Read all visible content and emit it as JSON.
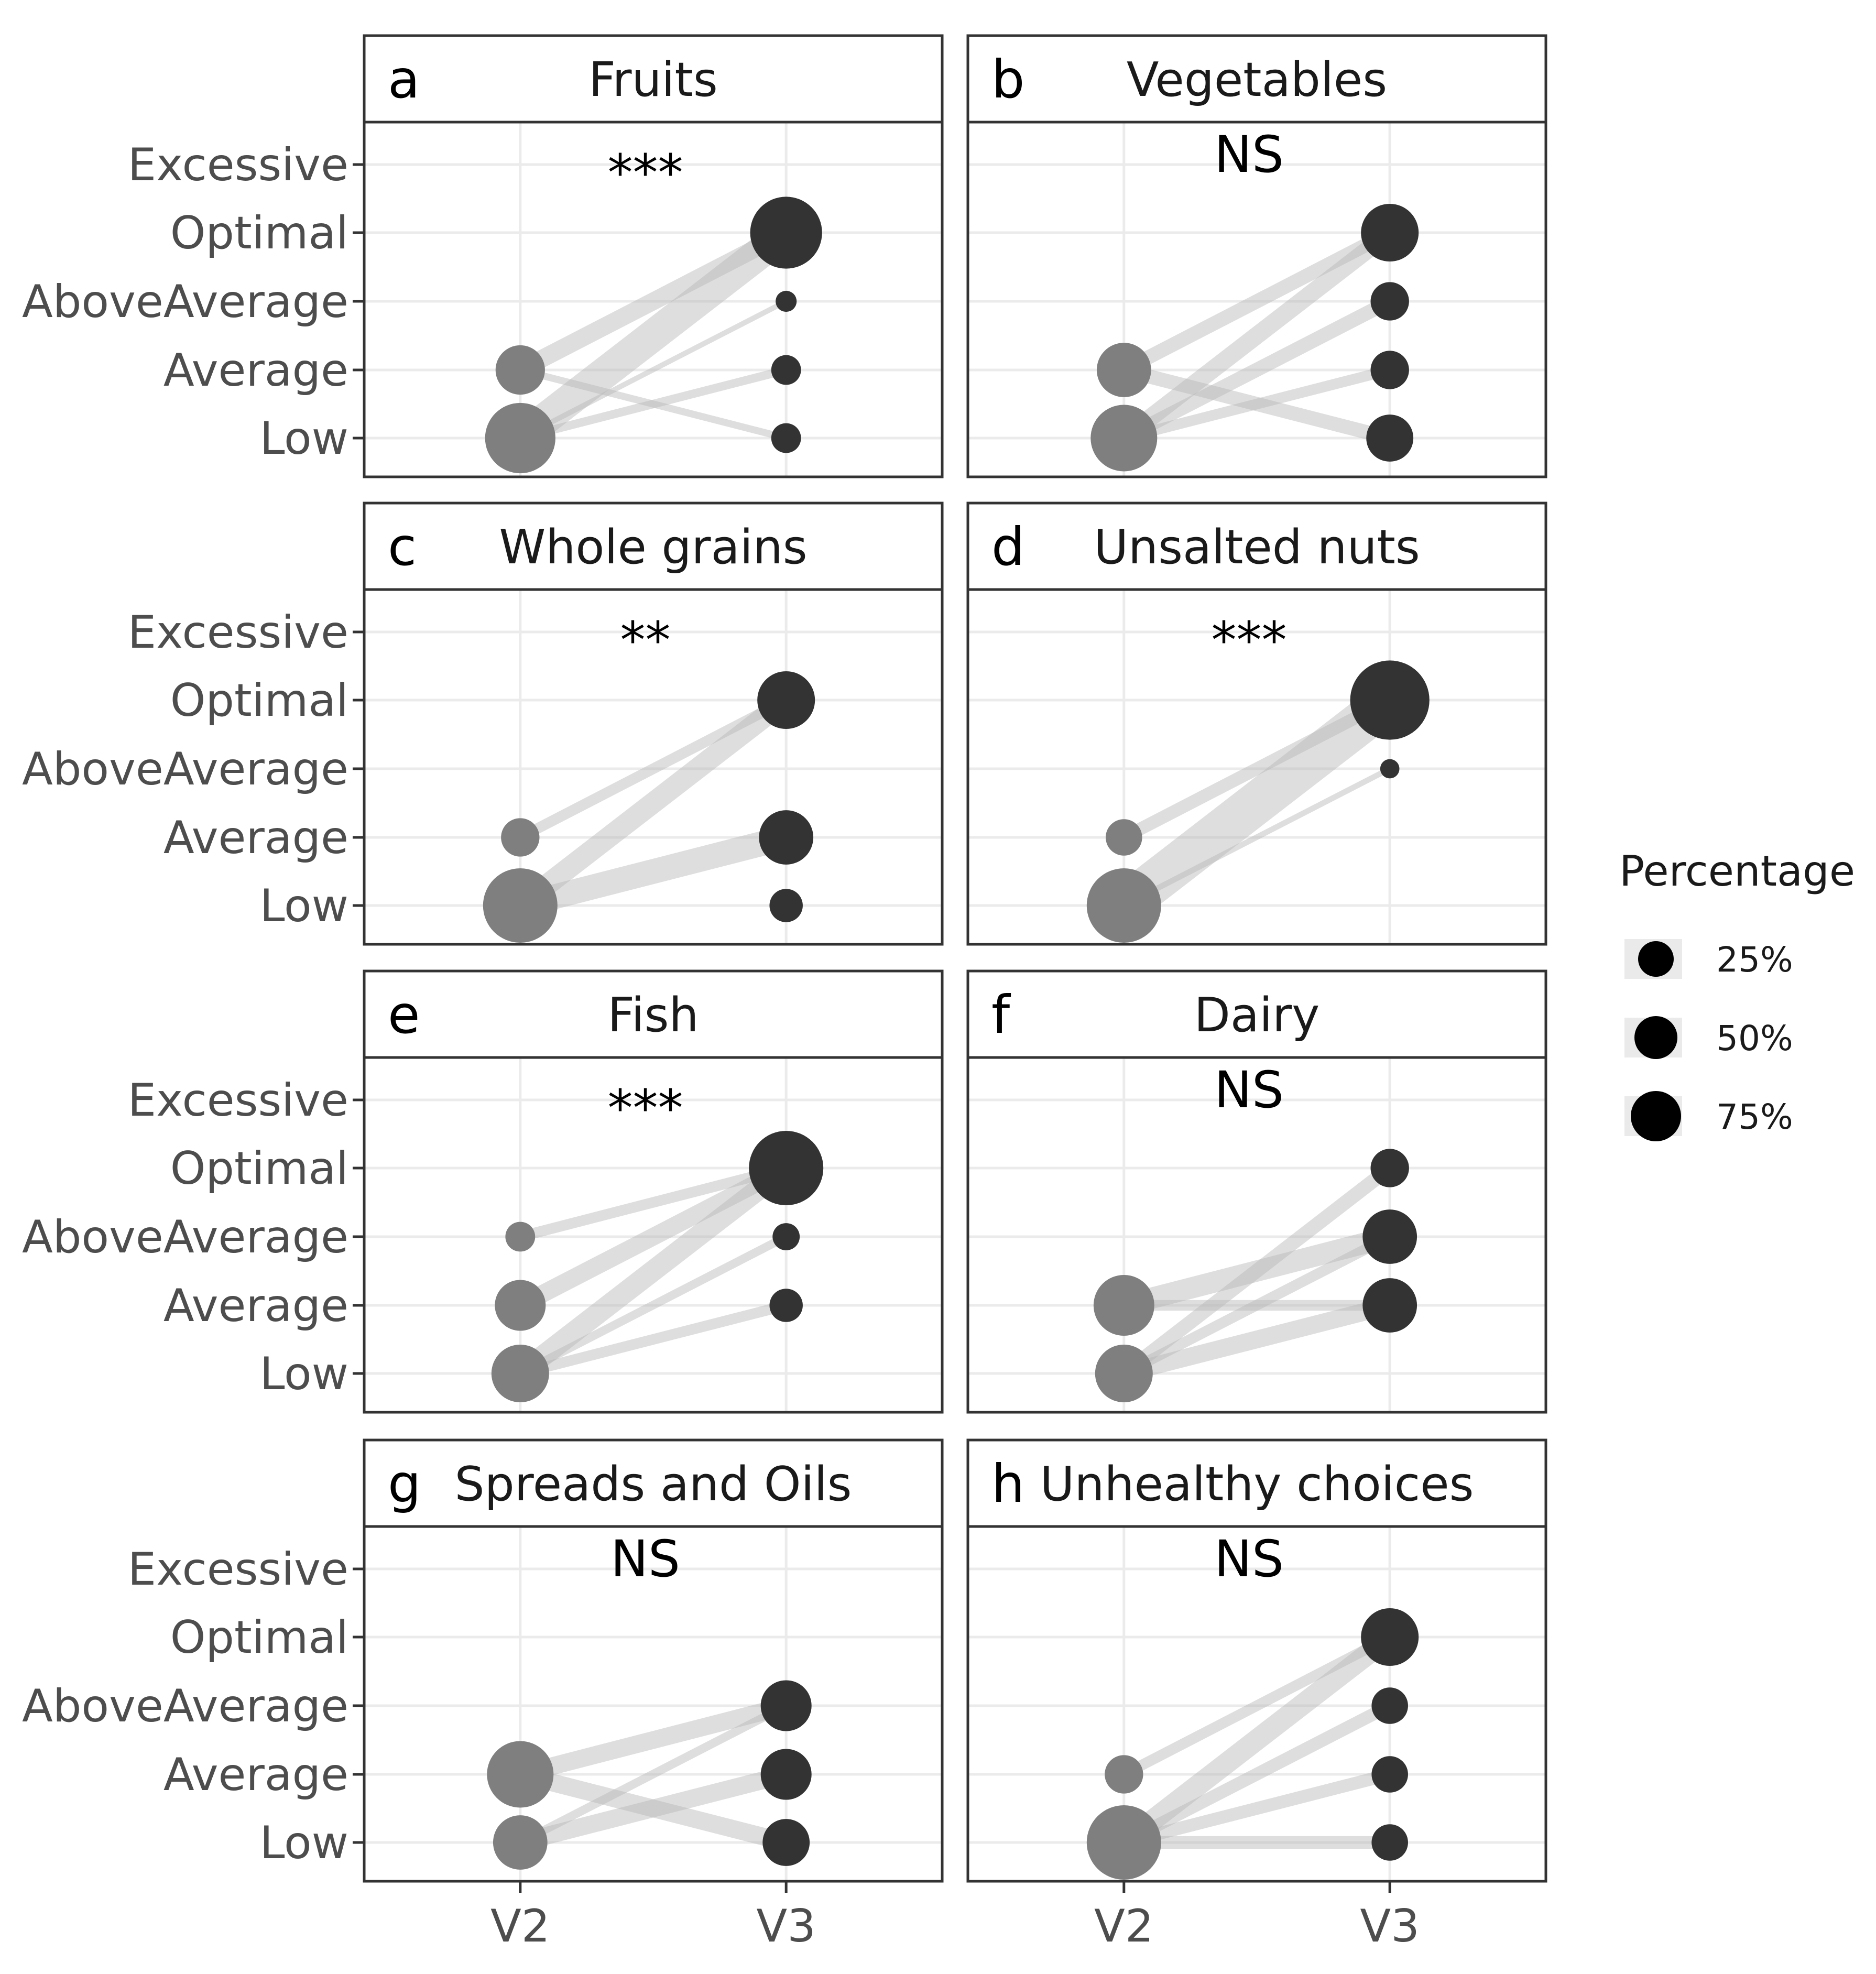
{
  "chart_data": {
    "type": "scatter",
    "description_note": "Paired dot plot with connecting bands, 4x2 facet grid; dot size = percentage",
    "x_categories": [
      "V2",
      "V3"
    ],
    "y_categories": [
      "Low",
      "Average",
      "AboveAverage",
      "Optimal",
      "Excessive"
    ],
    "legend": {
      "title": "Percentage",
      "position": "right",
      "entries": [
        {
          "label": "25%",
          "value": 25
        },
        {
          "label": "50%",
          "value": 50
        },
        {
          "label": "75%",
          "value": 75
        }
      ]
    },
    "colors": {
      "v2_point": "#7f7f7f",
      "v3_point": "#333333",
      "band": "#b5b5b5",
      "grid": "#ebebeb",
      "border": "#333333"
    },
    "panels": [
      {
        "letter": "a",
        "title": "Fruits",
        "significance": "***",
        "v2": [
          {
            "level": "Low",
            "pct": 67
          },
          {
            "level": "Average",
            "pct": 33
          }
        ],
        "v3": [
          {
            "level": "Low",
            "pct": 12
          },
          {
            "level": "Average",
            "pct": 12
          },
          {
            "level": "AboveAverage",
            "pct": 6
          },
          {
            "level": "Optimal",
            "pct": 70
          }
        ],
        "links": [
          {
            "from": "Low",
            "to": "Optimal",
            "pct": 45
          },
          {
            "from": "Average",
            "to": "Optimal",
            "pct": 25
          },
          {
            "from": "Low",
            "to": "AboveAverage",
            "pct": 6
          },
          {
            "from": "Low",
            "to": "Average",
            "pct": 12
          },
          {
            "from": "Average",
            "to": "Low",
            "pct": 10
          }
        ]
      },
      {
        "letter": "b",
        "title": "Vegetables",
        "significance": "NS",
        "v2": [
          {
            "level": "Low",
            "pct": 60
          },
          {
            "level": "Average",
            "pct": 40
          }
        ],
        "v3": [
          {
            "level": "Low",
            "pct": 30
          },
          {
            "level": "Average",
            "pct": 20
          },
          {
            "level": "AboveAverage",
            "pct": 20
          },
          {
            "level": "Optimal",
            "pct": 45
          }
        ],
        "links": [
          {
            "from": "Low",
            "to": "Optimal",
            "pct": 25
          },
          {
            "from": "Average",
            "to": "Optimal",
            "pct": 20
          },
          {
            "from": "Low",
            "to": "AboveAverage",
            "pct": 20
          },
          {
            "from": "Low",
            "to": "Average",
            "pct": 15
          },
          {
            "from": "Average",
            "to": "Low",
            "pct": 20
          }
        ]
      },
      {
        "letter": "c",
        "title": "Whole grains",
        "significance": "**",
        "v2": [
          {
            "level": "Low",
            "pct": 75
          },
          {
            "level": "Average",
            "pct": 20
          }
        ],
        "v3": [
          {
            "level": "Low",
            "pct": 15
          },
          {
            "level": "Average",
            "pct": 40
          },
          {
            "level": "Optimal",
            "pct": 45
          }
        ],
        "links": [
          {
            "from": "Low",
            "to": "Optimal",
            "pct": 30
          },
          {
            "from": "Average",
            "to": "Optimal",
            "pct": 15
          },
          {
            "from": "Low",
            "to": "Average",
            "pct": 35
          }
        ]
      },
      {
        "letter": "d",
        "title": "Unsalted nuts",
        "significance": "***",
        "v2": [
          {
            "level": "Low",
            "pct": 75
          },
          {
            "level": "Average",
            "pct": 18
          }
        ],
        "v3": [
          {
            "level": "AboveAverage",
            "pct": 5
          },
          {
            "level": "Optimal",
            "pct": 85
          }
        ],
        "links": [
          {
            "from": "Low",
            "to": "Optimal",
            "pct": 60
          },
          {
            "from": "Average",
            "to": "Optimal",
            "pct": 18
          },
          {
            "from": "Low",
            "to": "AboveAverage",
            "pct": 8
          }
        ]
      },
      {
        "letter": "e",
        "title": "Fish",
        "significance": "***",
        "v2": [
          {
            "level": "Low",
            "pct": 45
          },
          {
            "level": "Average",
            "pct": 35
          },
          {
            "level": "AboveAverage",
            "pct": 12
          }
        ],
        "v3": [
          {
            "level": "Average",
            "pct": 15
          },
          {
            "level": "AboveAverage",
            "pct": 10
          },
          {
            "level": "Optimal",
            "pct": 75
          }
        ],
        "links": [
          {
            "from": "Low",
            "to": "Optimal",
            "pct": 30
          },
          {
            "from": "Average",
            "to": "Optimal",
            "pct": 25
          },
          {
            "from": "AboveAverage",
            "to": "Optimal",
            "pct": 15
          },
          {
            "from": "Low",
            "to": "AboveAverage",
            "pct": 12
          },
          {
            "from": "Low",
            "to": "Average",
            "pct": 15
          }
        ]
      },
      {
        "letter": "f",
        "title": "Dairy",
        "significance": "NS",
        "v2": [
          {
            "level": "Low",
            "pct": 45
          },
          {
            "level": "Average",
            "pct": 50
          }
        ],
        "v3": [
          {
            "level": "Average",
            "pct": 40
          },
          {
            "level": "AboveAverage",
            "pct": 40
          },
          {
            "level": "Optimal",
            "pct": 20
          }
        ],
        "links": [
          {
            "from": "Average",
            "to": "AboveAverage",
            "pct": 30
          },
          {
            "from": "Low",
            "to": "Optimal",
            "pct": 20
          },
          {
            "from": "Low",
            "to": "AboveAverage",
            "pct": 15
          },
          {
            "from": "Low",
            "to": "Average",
            "pct": 25
          },
          {
            "from": "Average",
            "to": "Average",
            "pct": 15
          }
        ]
      },
      {
        "letter": "g",
        "title": "Spreads and Oils",
        "significance": "NS",
        "v2": [
          {
            "level": "Low",
            "pct": 40
          },
          {
            "level": "Average",
            "pct": 60
          }
        ],
        "v3": [
          {
            "level": "Low",
            "pct": 30
          },
          {
            "level": "Average",
            "pct": 35
          },
          {
            "level": "AboveAverage",
            "pct": 35
          }
        ],
        "links": [
          {
            "from": "Average",
            "to": "AboveAverage",
            "pct": 25
          },
          {
            "from": "Average",
            "to": "Low",
            "pct": 25
          },
          {
            "from": "Low",
            "to": "Average",
            "pct": 25
          },
          {
            "from": "Low",
            "to": "AboveAverage",
            "pct": 12
          }
        ]
      },
      {
        "letter": "h",
        "title": "Unhealthy choices",
        "significance": "NS",
        "v2": [
          {
            "level": "Low",
            "pct": 75
          },
          {
            "level": "Average",
            "pct": 20
          }
        ],
        "v3": [
          {
            "level": "Low",
            "pct": 18
          },
          {
            "level": "Average",
            "pct": 18
          },
          {
            "level": "AboveAverage",
            "pct": 18
          },
          {
            "level": "Optimal",
            "pct": 45
          }
        ],
        "links": [
          {
            "from": "Low",
            "to": "Optimal",
            "pct": 30
          },
          {
            "from": "Average",
            "to": "Optimal",
            "pct": 15
          },
          {
            "from": "Low",
            "to": "AboveAverage",
            "pct": 18
          },
          {
            "from": "Low",
            "to": "Average",
            "pct": 18
          },
          {
            "from": "Low",
            "to": "Low",
            "pct": 18
          }
        ]
      }
    ]
  }
}
